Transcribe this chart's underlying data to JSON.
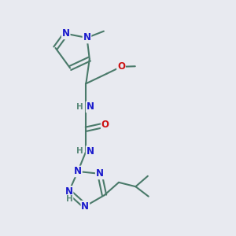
{
  "bg_color": "#e8eaf0",
  "bond_color": "#4a7a6a",
  "bond_width": 1.5,
  "N_color": "#1a1acc",
  "O_color": "#cc1111",
  "H_color": "#5a8a7a",
  "font_size": 8.5,
  "figsize": [
    3.0,
    3.0
  ],
  "dpi": 100,
  "xlim": [
    0,
    10
  ],
  "ylim": [
    0,
    10
  ]
}
